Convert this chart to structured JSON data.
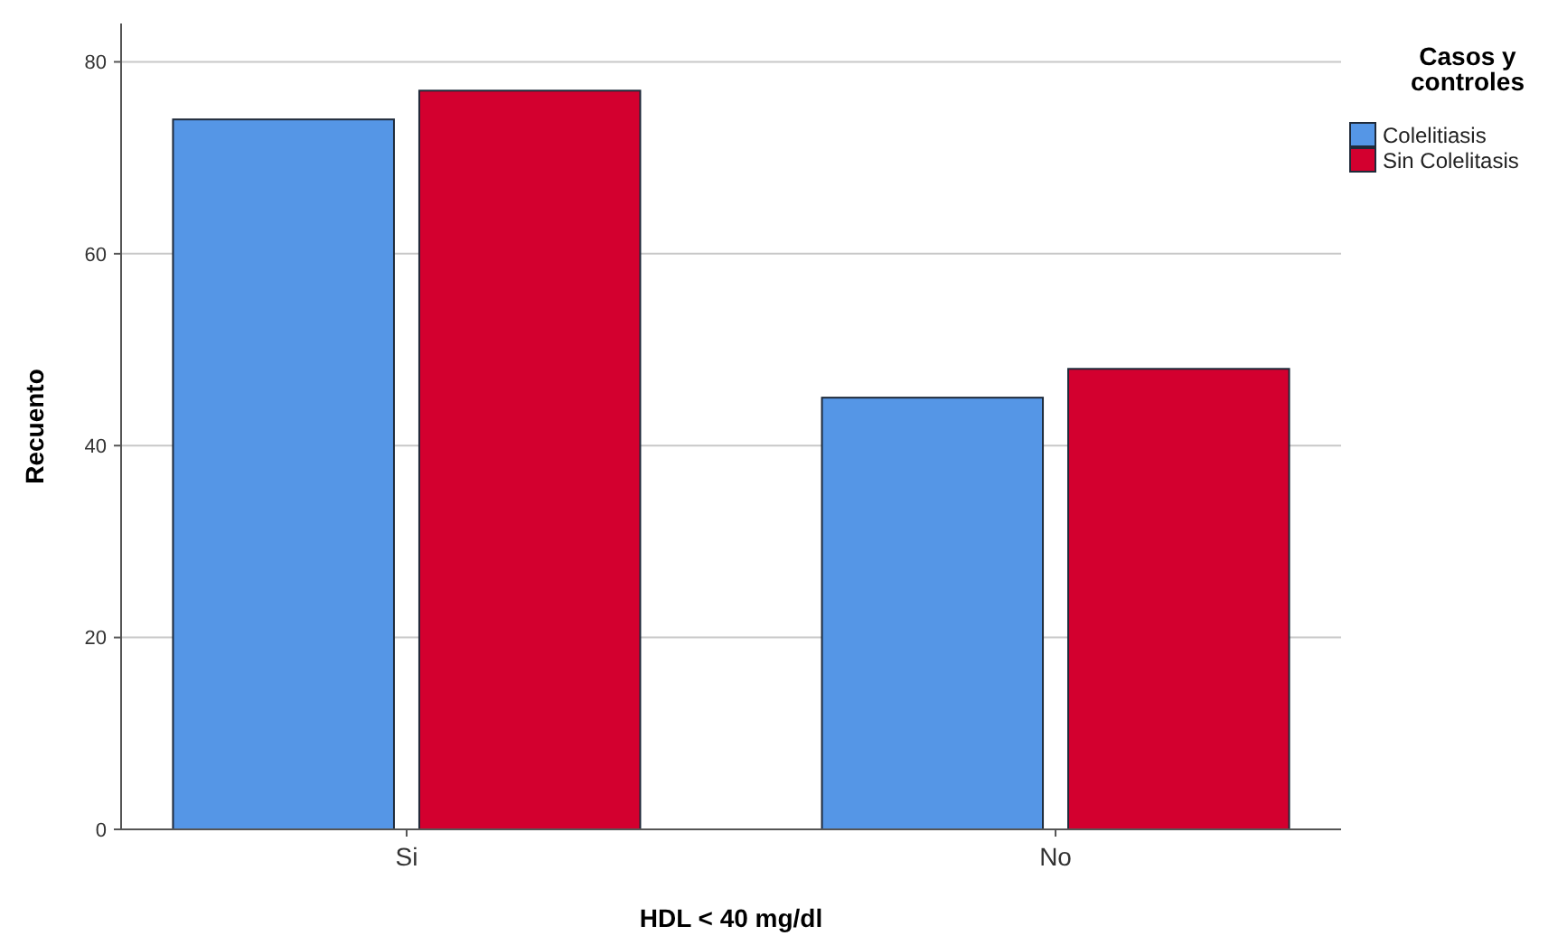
{
  "chart_data": {
    "type": "bar",
    "xlabel": "HDL < 40 mg/dl",
    "ylabel": "Recuento",
    "legend_title": "Casos y controles",
    "categories": [
      "Si",
      "No"
    ],
    "series": [
      {
        "name": "Colelitiasis",
        "color": "#5596e6",
        "values": [
          74,
          45
        ]
      },
      {
        "name": "Sin Colelitasis",
        "color": "#d3002f",
        "values": [
          77,
          48
        ]
      }
    ],
    "ylim": [
      0,
      84
    ],
    "yticks": [
      0,
      20,
      40,
      60,
      80
    ],
    "grid": "y",
    "legend": "top right"
  }
}
